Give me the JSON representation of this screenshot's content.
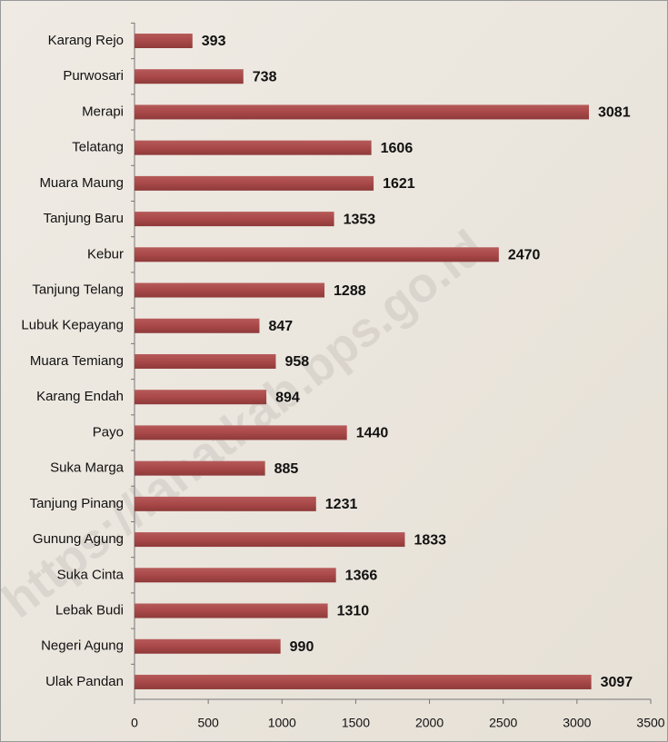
{
  "chart_data": {
    "type": "bar",
    "orientation": "horizontal",
    "categories": [
      "Karang Rejo",
      "Purwosari",
      "Merapi",
      "Telatang",
      "Muara Maung",
      "Tanjung Baru",
      "Kebur",
      "Tanjung Telang",
      "Lubuk Kepayang",
      "Muara Temiang",
      "Karang Endah",
      "Payo",
      "Suka Marga",
      "Tanjung Pinang",
      "Gunung Agung",
      "Suka Cinta",
      "Lebak Budi",
      "Negeri Agung",
      "Ulak Pandan"
    ],
    "values": [
      393,
      738,
      3081,
      1606,
      1621,
      1353,
      2470,
      1288,
      847,
      958,
      894,
      1440,
      885,
      1231,
      1833,
      1366,
      1310,
      990,
      3097
    ],
    "color": "#a94848",
    "xlim": [
      0,
      3500
    ],
    "xticks": [
      0,
      500,
      1000,
      1500,
      2000,
      2500,
      3000,
      3500
    ],
    "grid": false,
    "watermark": "https://lahatkab.bps.go.id"
  }
}
